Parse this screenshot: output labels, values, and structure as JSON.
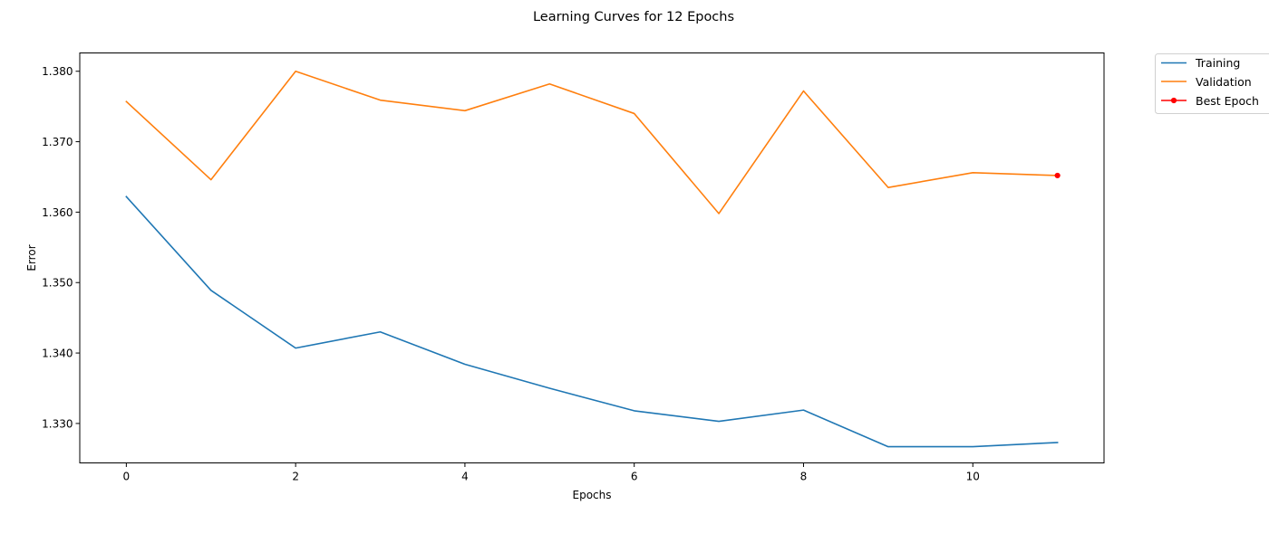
{
  "chart_data": {
    "type": "line",
    "title": "Learning Curves for 12 Epochs",
    "xlabel": "Epochs",
    "ylabel": "Error",
    "x": [
      0,
      1,
      2,
      3,
      4,
      5,
      6,
      7,
      8,
      9,
      10,
      11
    ],
    "xlim": [
      -0.55,
      11.55
    ],
    "ylim": [
      1.3244,
      1.3826
    ],
    "xticks": [
      0,
      2,
      4,
      6,
      8,
      10
    ],
    "yticks": [
      1.33,
      1.34,
      1.35,
      1.36,
      1.37,
      1.38
    ],
    "xtick_labels": [
      "0",
      "2",
      "4",
      "6",
      "8",
      "10"
    ],
    "ytick_labels": [
      "1.330",
      "1.340",
      "1.350",
      "1.360",
      "1.370",
      "1.380"
    ],
    "grid": false,
    "legend_position": "outside-top-right",
    "series": [
      {
        "name": "Training",
        "color": "#1f77b4",
        "values": [
          1.3622,
          1.3489,
          1.3407,
          1.343,
          1.3384,
          1.335,
          1.3318,
          1.3303,
          1.3319,
          1.3267,
          1.3267,
          1.3273
        ]
      },
      {
        "name": "Validation",
        "color": "#ff7f0e",
        "values": [
          1.3757,
          1.3646,
          1.38,
          1.3759,
          1.3744,
          1.3782,
          1.374,
          1.3598,
          1.3772,
          1.3635,
          1.3656,
          1.3652
        ]
      }
    ],
    "best_epoch": {
      "name": "Best Epoch",
      "color": "#ff0000",
      "x": 11,
      "y": 1.3652
    }
  }
}
